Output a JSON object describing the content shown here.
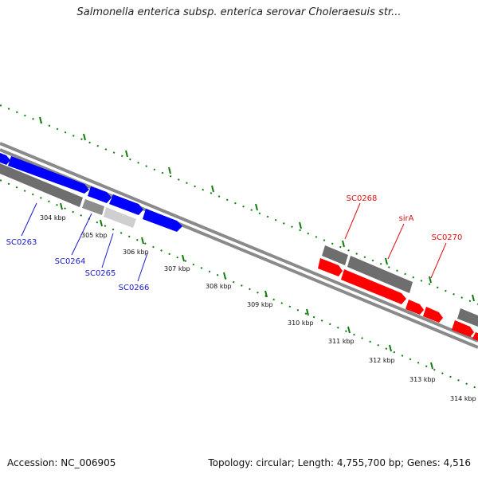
{
  "header": {
    "title": "Salmonella enterica subsp. enterica serovar Choleraesuis str..."
  },
  "footer": {
    "accession": "Accession: NC_006905",
    "summary": "Topology: circular; Length: 4,755,700 bp; Genes: 4,516"
  },
  "colors": {
    "forward_gene": "#0000ff",
    "highlight_gene": "#ff0000",
    "pseudo_gene_dark": "#6e6e6e",
    "pseudo_gene_light": "#cfcfcf",
    "backbone": "#8a8a8a",
    "tick": "#0f7a0f",
    "blue_label": "#1a1acc",
    "red_label": "#dd1111"
  },
  "ruler": {
    "labels": [
      "304 kbp",
      "305 kbp",
      "306 kbp",
      "307 kbp",
      "308 kbp",
      "309 kbp",
      "310 kbp",
      "311 kbp",
      "312 kbp",
      "313 kbp",
      "314 kbp"
    ]
  },
  "genes": {
    "blue": [
      {
        "label": "SC0263"
      },
      {
        "label": "SC0264"
      },
      {
        "label": "SC0265"
      },
      {
        "label": "SC0266"
      }
    ],
    "red": [
      {
        "label": "SC0268"
      },
      {
        "label": "sirA"
      },
      {
        "label": "SC0270"
      }
    ]
  }
}
